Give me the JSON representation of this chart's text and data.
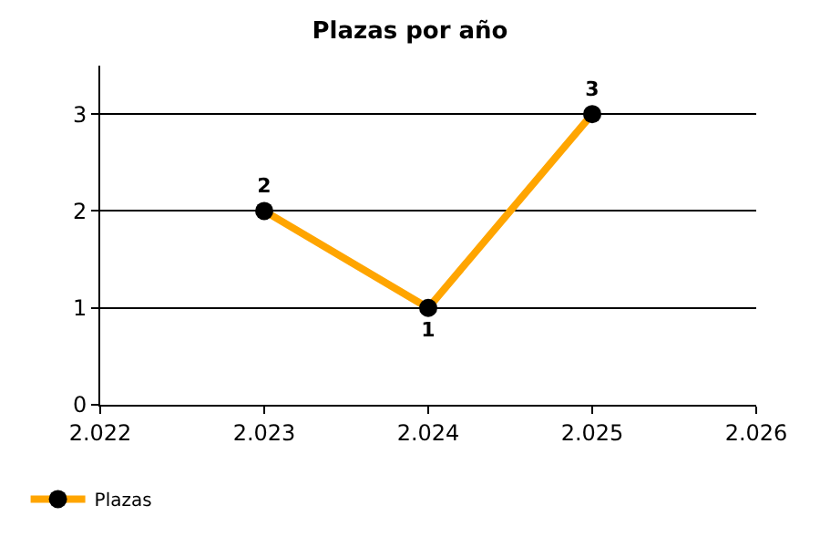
{
  "chart_data": {
    "type": "line",
    "title": "Plazas por año",
    "x": [
      2023,
      2024,
      2025
    ],
    "series": [
      {
        "name": "Plazas",
        "color": "#ffa500",
        "values": [
          2,
          1,
          3
        ]
      }
    ],
    "xlim": [
      2022,
      2026
    ],
    "xticks": [
      {
        "value": 2022,
        "label": "2.022"
      },
      {
        "value": 2023,
        "label": "2.023"
      },
      {
        "value": 2024,
        "label": "2.024"
      },
      {
        "value": 2025,
        "label": "2.025"
      },
      {
        "value": 2026,
        "label": "2.026"
      }
    ],
    "ylim": [
      0,
      3.5
    ],
    "yticks": [
      0,
      1,
      2,
      3
    ],
    "grid": "y",
    "legend": "bottom left",
    "marker": "circle",
    "line_style": "solid",
    "data_labels": true
  }
}
